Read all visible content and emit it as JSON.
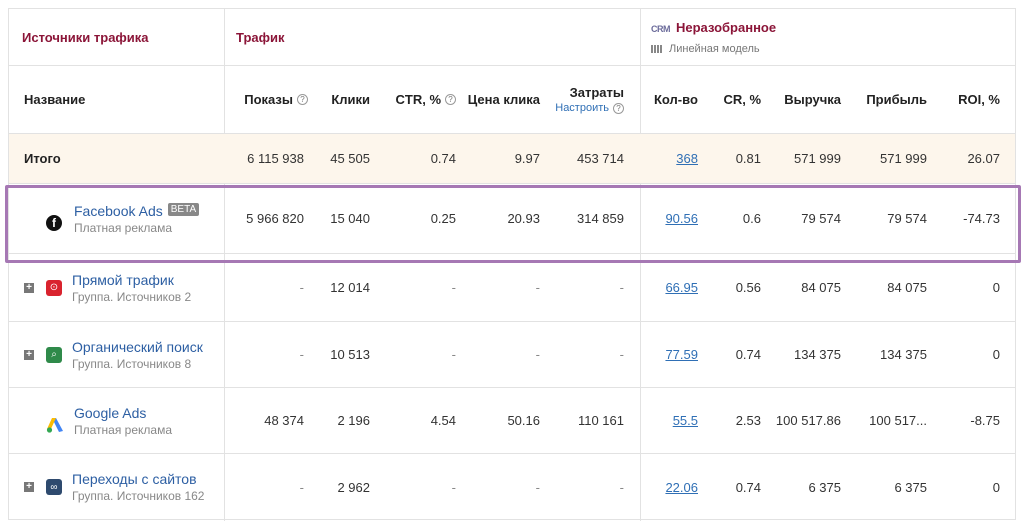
{
  "groups": {
    "sources": "Источники трафика",
    "traffic": "Трафик",
    "crm_badge": "CRM",
    "unsorted": "Неразобранное",
    "model": "Линейная модель"
  },
  "headers": {
    "name": "Название",
    "shows": "Показы",
    "clicks": "Клики",
    "ctr": "CTR, %",
    "cpc": "Цена клика",
    "costs": "Затраты",
    "costs_setup": "Настроить",
    "count": "Кол-во",
    "cr": "CR, %",
    "revenue": "Выручка",
    "profit": "Прибыль",
    "roi": "ROI, %"
  },
  "total": {
    "label": "Итого",
    "shows": "6 115 938",
    "clicks": "45 505",
    "ctr": "0.74",
    "cpc": "9.97",
    "costs": "453 714",
    "count": "368",
    "cr": "0.81",
    "revenue": "571 999",
    "profit": "571 999",
    "roi": "26.07"
  },
  "rows": [
    {
      "name": "Facebook Ads",
      "badge": "BETA",
      "sub": "Платная реклама",
      "shows": "5 966 820",
      "clicks": "15 040",
      "ctr": "0.25",
      "cpc": "20.93",
      "costs": "314 859",
      "count": "90.56",
      "cr": "0.6",
      "revenue": "79 574",
      "profit": "79 574",
      "roi": "-74.73"
    },
    {
      "name": "Прямой трафик",
      "sub": "Группа. Источников 2",
      "shows": "-",
      "clicks": "12 014",
      "ctr": "-",
      "cpc": "-",
      "costs": "-",
      "count": "66.95",
      "cr": "0.56",
      "revenue": "84 075",
      "profit": "84 075",
      "roi": "0"
    },
    {
      "name": "Органический поиск",
      "sub": "Группа. Источников 8",
      "shows": "-",
      "clicks": "10 513",
      "ctr": "-",
      "cpc": "-",
      "costs": "-",
      "count": "77.59",
      "cr": "0.74",
      "revenue": "134 375",
      "profit": "134 375",
      "roi": "0"
    },
    {
      "name": "Google Ads",
      "sub": "Платная реклама",
      "shows": "48 374",
      "clicks": "2 196",
      "ctr": "4.54",
      "cpc": "50.16",
      "costs": "110 161",
      "count": "55.5",
      "cr": "2.53",
      "revenue": "100 517.86",
      "profit": "100 517...",
      "roi": "-8.75"
    },
    {
      "name": "Переходы с сайтов",
      "sub": "Группа. Источников 162",
      "shows": "-",
      "clicks": "2 962",
      "ctr": "-",
      "cpc": "-",
      "costs": "-",
      "count": "22.06",
      "cr": "0.74",
      "revenue": "6 375",
      "profit": "6 375",
      "roi": "0"
    }
  ],
  "icons": {
    "facebook": "facebook-icon",
    "direct": "direct-traffic-icon",
    "organic": "search-icon",
    "google_ads": "google-ads-icon",
    "referral": "link-icon",
    "help": "help-icon",
    "expand": "plus-icon"
  },
  "colors": {
    "group_title": "#8b1538",
    "link": "#2f6fb5",
    "total_bg": "#fdf6ec",
    "highlight": "#a678b4",
    "direct_icon": "#d9232e",
    "organic_icon": "#2f8a4a",
    "referral_icon": "#2e4a6e"
  }
}
